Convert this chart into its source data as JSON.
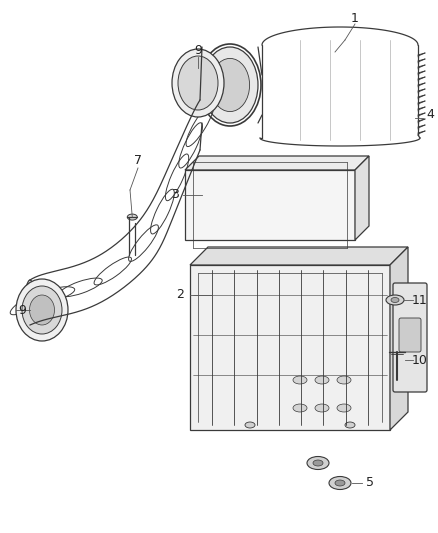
{
  "bg_color": "#ffffff",
  "line_color": "#3a3a3a",
  "label_color": "#222222",
  "figsize": [
    4.38,
    5.33
  ],
  "dpi": 100,
  "xlim": [
    0,
    438
  ],
  "ylim": [
    0,
    533
  ]
}
